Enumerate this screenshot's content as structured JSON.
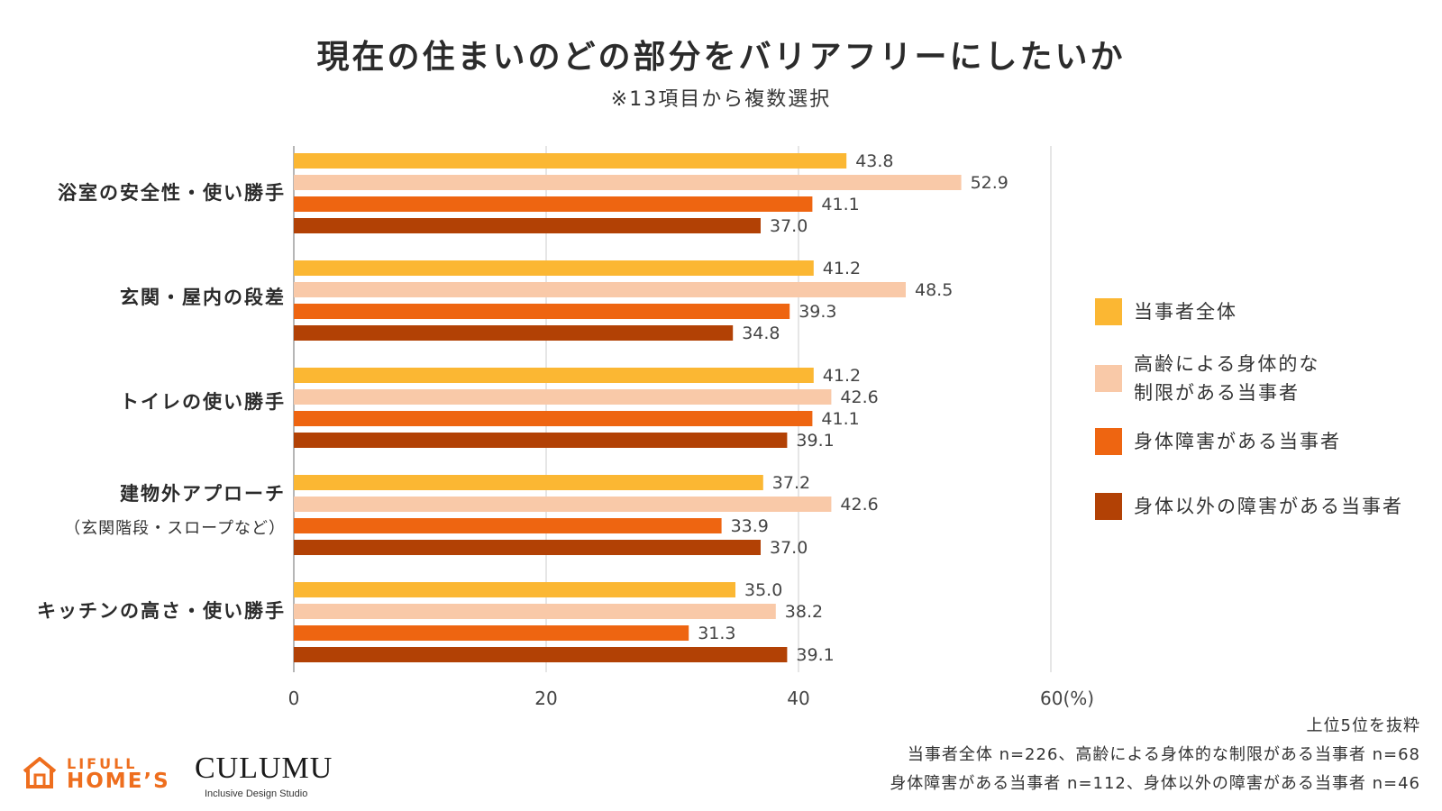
{
  "chart_data": {
    "type": "bar",
    "orientation": "horizontal",
    "title": "現在の住まいのどの部分をバリアフリーにしたいか",
    "subtitle": "※13項目から複数選択",
    "categories": [
      {
        "label": "浴室の安全性・使い勝手",
        "sublabel": ""
      },
      {
        "label": "玄関・屋内の段差",
        "sublabel": ""
      },
      {
        "label": "トイレの使い勝手",
        "sublabel": ""
      },
      {
        "label": "建物外アプローチ",
        "sublabel": "（玄関階段・スロープなど）"
      },
      {
        "label": "キッチンの高さ・使い勝手",
        "sublabel": ""
      }
    ],
    "series": [
      {
        "name": "当事者全体",
        "color": "#fbb733",
        "values": [
          43.8,
          41.2,
          41.2,
          37.2,
          35.0
        ]
      },
      {
        "name": "高齢による身体的な制限がある当事者",
        "name_lines": [
          "高齢による身体的な",
          "制限がある当事者"
        ],
        "color": "#f9c9a8",
        "values": [
          52.9,
          48.5,
          42.6,
          42.6,
          38.2
        ]
      },
      {
        "name": "身体障害がある当事者",
        "color": "#ee6511",
        "values": [
          41.1,
          39.3,
          41.1,
          33.9,
          31.3
        ]
      },
      {
        "name": "身体以外の障害がある当事者",
        "color": "#b24105",
        "values": [
          37.0,
          34.8,
          39.1,
          37.0,
          39.1
        ]
      }
    ],
    "x_ticks": [
      "0",
      "20",
      "40",
      "60(%)"
    ],
    "xlim": [
      0,
      60
    ],
    "grid": true,
    "legend_position": "right",
    "value_labels": [
      "43.8",
      "52.9",
      "41.1",
      "37.0",
      "41.2",
      "48.5",
      "39.3",
      "34.8",
      "41.2",
      "42.6",
      "41.1",
      "39.1",
      "37.2",
      "42.6",
      "33.9",
      "37.0",
      "35.0",
      "38.2",
      "31.3",
      "39.1"
    ]
  },
  "notes": [
    "上位5位を抜粋",
    "当事者全体 n=226、高齢による身体的な制限がある当事者 n=68",
    "身体障害がある当事者 n=112、身体以外の障害がある当事者 n=46"
  ],
  "logos": {
    "lifull": "LIFULL",
    "homes": "HOME’S",
    "culumu": "CULUMU",
    "culumu_tagline": "Inclusive Design Studio"
  },
  "colors": {
    "axis": "#bdbdbd",
    "text": "#333333",
    "brand_orange": "#ee6e1e"
  }
}
